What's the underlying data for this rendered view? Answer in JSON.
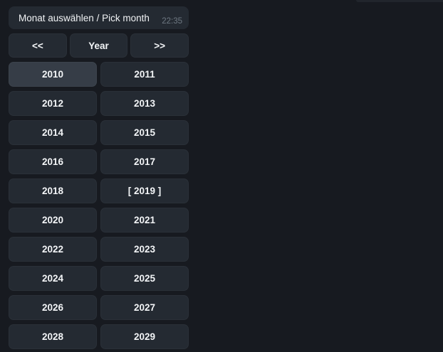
{
  "message": {
    "text": "Monat auswählen / Pick month",
    "time": "22:35"
  },
  "nav": {
    "prev": "<<",
    "year": "Year",
    "next": ">>"
  },
  "years": {
    "labels": [
      "2010",
      "2011",
      "2012",
      "2013",
      "2014",
      "2015",
      "2016",
      "2017",
      "2018",
      "[ 2019 ]",
      "2020",
      "2021",
      "2022",
      "2023",
      "2024",
      "2025",
      "2026",
      "2027",
      "2028",
      "2029"
    ],
    "selected": "[ 2019 ]",
    "hovered": "2010"
  },
  "colors": {
    "background": "#171a20",
    "bubble": "#242a32",
    "button": "#242a32",
    "button_hover": "#363d47",
    "text": "#f3f5f7",
    "timestamp": "#6e7882"
  }
}
